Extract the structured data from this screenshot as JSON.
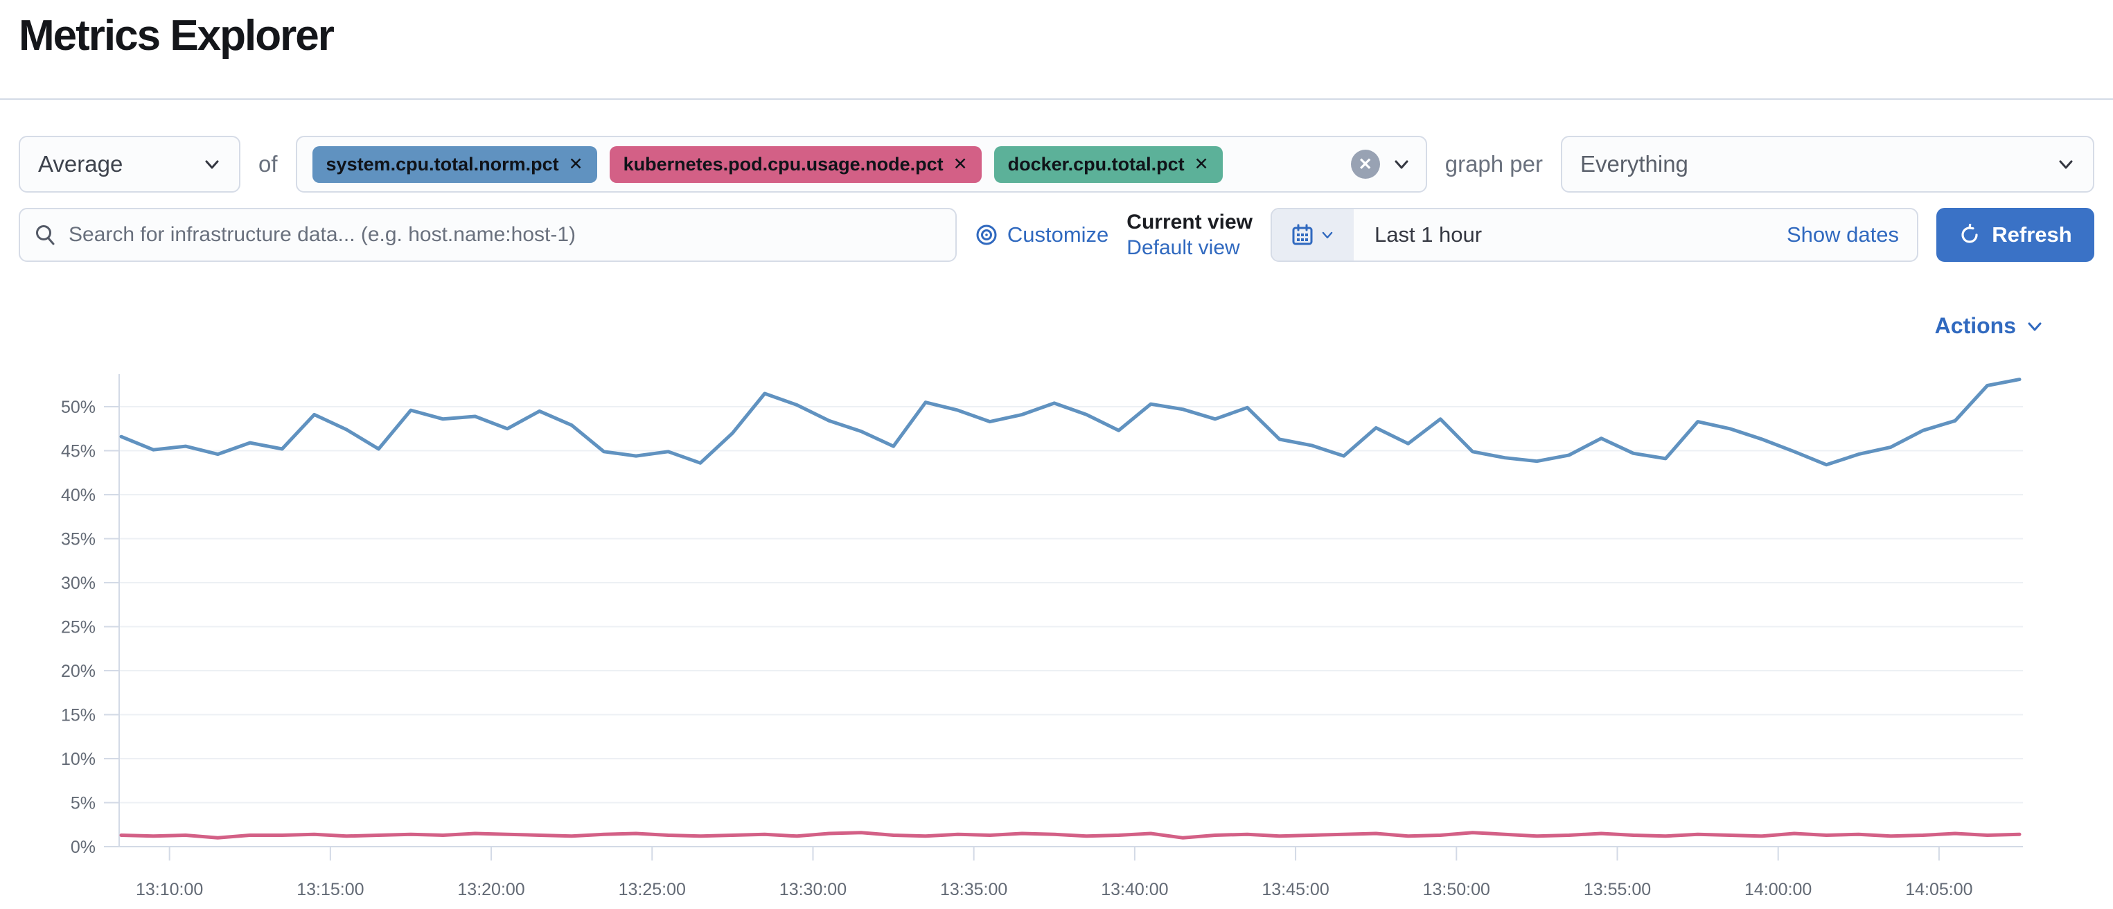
{
  "page": {
    "title": "Metrics Explorer"
  },
  "toolbar": {
    "aggregation": {
      "value": "Average"
    },
    "of_label": "of",
    "metrics": [
      {
        "label": "system.cpu.total.norm.pct",
        "color": "#6092C0"
      },
      {
        "label": "kubernetes.pod.cpu.usage.node.pct",
        "color": "#D36086"
      },
      {
        "label": "docker.cpu.total.pct",
        "color": "#5CB199"
      }
    ],
    "remove_glyph": "✕",
    "clear_glyph": "✕",
    "graph_per_label": "graph per",
    "group_by": {
      "value": "Everything"
    }
  },
  "searchbar": {
    "placeholder": "Search for infrastructure data... (e.g. host.name:host-1)",
    "value": ""
  },
  "view_controls": {
    "customize_label": "Customize",
    "current_view_label": "Current view",
    "default_view_label": "Default view"
  },
  "time_picker": {
    "value": "Last 1 hour",
    "show_dates_label": "Show dates",
    "refresh_label": "Refresh"
  },
  "actions": {
    "label": "Actions"
  },
  "chart_data": {
    "type": "line",
    "title": "",
    "xlabel": "",
    "ylabel": "",
    "ylim": [
      0,
      54.5
    ],
    "y_ticks": [
      {
        "value": 0,
        "label": "0%"
      },
      {
        "value": 5,
        "label": "5%"
      },
      {
        "value": 10,
        "label": "10%"
      },
      {
        "value": 15,
        "label": "15%"
      },
      {
        "value": 20,
        "label": "20%"
      },
      {
        "value": 25,
        "label": "25%"
      },
      {
        "value": 30,
        "label": "30%"
      },
      {
        "value": 35,
        "label": "35%"
      },
      {
        "value": 40,
        "label": "40%"
      },
      {
        "value": 45,
        "label": "45%"
      },
      {
        "value": 50,
        "label": "50%"
      }
    ],
    "x_ticks": [
      "13:10:00",
      "13:15:00",
      "13:20:00",
      "13:25:00",
      "13:30:00",
      "13:35:00",
      "13:40:00",
      "13:45:00",
      "13:50:00",
      "13:55:00",
      "14:00:00",
      "14:05:00"
    ],
    "grid": true,
    "legend_position": "none",
    "series": [
      {
        "name": "system.cpu.total.norm.pct",
        "color": "#6092C0",
        "values": [
          46.6,
          45.1,
          45.5,
          44.6,
          45.9,
          45.2,
          49.1,
          47.4,
          45.2,
          49.6,
          48.6,
          48.9,
          47.5,
          49.5,
          47.9,
          44.9,
          44.4,
          44.9,
          43.6,
          47.0,
          51.5,
          50.2,
          48.4,
          47.2,
          45.5,
          50.5,
          49.6,
          48.3,
          49.1,
          50.4,
          49.1,
          47.3,
          50.3,
          49.7,
          48.6,
          49.9,
          46.3,
          45.6,
          44.4,
          47.6,
          45.8,
          48.6,
          44.9,
          44.2,
          43.8,
          44.5,
          46.4,
          44.7,
          44.1,
          48.3,
          47.5,
          46.3,
          44.9,
          43.4,
          44.6,
          45.4,
          47.3,
          48.4,
          52.4,
          53.1
        ]
      },
      {
        "name": "kubernetes.pod.cpu.usage.node.pct",
        "color": "#D36086",
        "values": [
          1.3,
          1.2,
          1.3,
          1.0,
          1.3,
          1.3,
          1.4,
          1.2,
          1.3,
          1.4,
          1.3,
          1.5,
          1.4,
          1.3,
          1.2,
          1.4,
          1.5,
          1.3,
          1.2,
          1.3,
          1.4,
          1.2,
          1.5,
          1.6,
          1.3,
          1.2,
          1.4,
          1.3,
          1.5,
          1.4,
          1.2,
          1.3,
          1.5,
          1.0,
          1.3,
          1.4,
          1.2,
          1.3,
          1.4,
          1.5,
          1.2,
          1.3,
          1.6,
          1.4,
          1.2,
          1.3,
          1.5,
          1.3,
          1.2,
          1.4,
          1.3,
          1.2,
          1.5,
          1.3,
          1.4,
          1.2,
          1.3,
          1.5,
          1.3,
          1.4
        ]
      }
    ]
  }
}
